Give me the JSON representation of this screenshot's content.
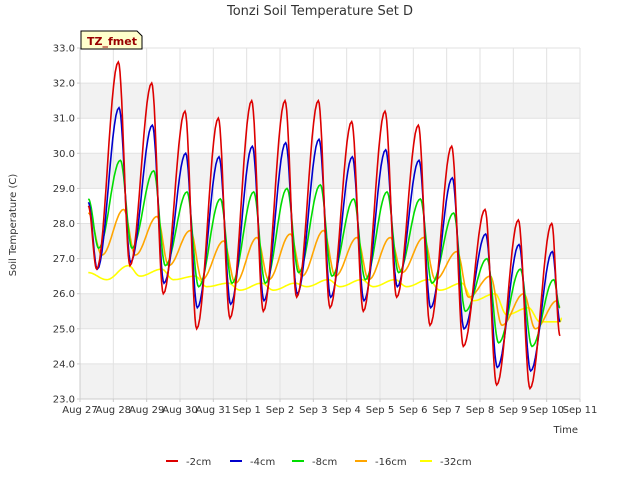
{
  "chart_data": {
    "type": "line",
    "title": "Tonzi Soil Temperature Set D",
    "xlabel": "Time",
    "ylabel": "Soil Temperature (C)",
    "tag": "TZ_fmet",
    "ylim": [
      23.0,
      33.0
    ],
    "xlim": [
      0,
      15
    ],
    "yticks": [
      23.0,
      24.0,
      25.0,
      26.0,
      27.0,
      28.0,
      29.0,
      30.0,
      31.0,
      32.0,
      33.0
    ],
    "ytick_labels": [
      "23.0",
      "24.0",
      "25.0",
      "26.0",
      "27.0",
      "28.0",
      "29.0",
      "30.0",
      "31.0",
      "32.0",
      "33.0"
    ],
    "xtick_labels": [
      "Aug 27",
      "Aug 28",
      "Aug 29",
      "Aug 30",
      "Aug 31",
      "Sep 1",
      "Sep 2",
      "Sep 3",
      "Sep 4",
      "Sep 5",
      "Sep 6",
      "Sep 7",
      "Sep 8",
      "Sep 9",
      "Sep 10",
      "Sep 11"
    ],
    "grid": true,
    "legend_position": "bottom",
    "days": [
      "Aug 28",
      "Aug 29",
      "Aug 30",
      "Aug 31",
      "Sep 1",
      "Sep 2",
      "Sep 3",
      "Sep 4",
      "Sep 5",
      "Sep 6",
      "Sep 7",
      "Sep 8",
      "Sep 9",
      "Sep 10"
    ],
    "start_value": {
      "-2cm": 28.5,
      "-4cm": 28.6,
      "-8cm": 28.7,
      "-16cm": 28.3,
      "-32cm": 26.6
    },
    "end_value": {
      "-2cm": 24.8,
      "-4cm": 25.2,
      "-8cm": 25.6,
      "-16cm": 25.6,
      "-32cm": 25.2
    },
    "series": [
      {
        "name": "-2cm",
        "color": "#dd0000",
        "daily_min": [
          26.7,
          26.8,
          26.0,
          25.0,
          25.3,
          25.5,
          25.9,
          25.6,
          25.5,
          25.9,
          25.1,
          24.5,
          23.4,
          23.3
        ],
        "daily_max": [
          32.6,
          32.0,
          31.2,
          31.0,
          31.5,
          31.5,
          31.5,
          30.9,
          31.2,
          30.8,
          30.2,
          28.4,
          28.1,
          28.0
        ]
      },
      {
        "name": "-4cm",
        "color": "#0000cc",
        "daily_min": [
          26.7,
          26.9,
          26.3,
          25.6,
          25.7,
          25.8,
          26.0,
          25.9,
          25.8,
          26.2,
          25.6,
          25.0,
          23.9,
          23.8
        ],
        "daily_max": [
          31.3,
          30.8,
          30.0,
          29.9,
          30.2,
          30.3,
          30.4,
          29.9,
          30.1,
          29.8,
          29.3,
          27.7,
          27.4,
          27.2
        ]
      },
      {
        "name": "-8cm",
        "color": "#00dd00",
        "daily_min": [
          27.3,
          27.3,
          26.8,
          26.2,
          26.3,
          26.3,
          26.6,
          26.5,
          26.4,
          26.6,
          26.3,
          25.5,
          24.6,
          24.5
        ],
        "daily_max": [
          29.8,
          29.5,
          28.9,
          28.7,
          28.9,
          29.0,
          29.1,
          28.7,
          28.9,
          28.7,
          28.3,
          27.0,
          26.7,
          26.4
        ]
      },
      {
        "name": "-16cm",
        "color": "#ffa500",
        "daily_min": [
          27.1,
          27.1,
          26.8,
          26.4,
          26.3,
          26.4,
          26.5,
          26.5,
          26.4,
          26.6,
          26.4,
          25.9,
          25.1,
          25.0
        ],
        "daily_max": [
          28.4,
          28.2,
          27.8,
          27.5,
          27.6,
          27.7,
          27.8,
          27.6,
          27.6,
          27.6,
          27.2,
          26.5,
          26.0,
          25.8
        ]
      },
      {
        "name": "-32cm",
        "color": "#ffff00",
        "daily_min": [
          26.4,
          26.5,
          26.4,
          26.2,
          26.1,
          26.1,
          26.2,
          26.2,
          26.2,
          26.2,
          26.1,
          25.8,
          25.4,
          25.2
        ],
        "daily_max": [
          26.8,
          26.7,
          26.5,
          26.3,
          26.3,
          26.3,
          26.4,
          26.4,
          26.4,
          26.4,
          26.3,
          26.0,
          25.6,
          25.3
        ]
      }
    ]
  }
}
